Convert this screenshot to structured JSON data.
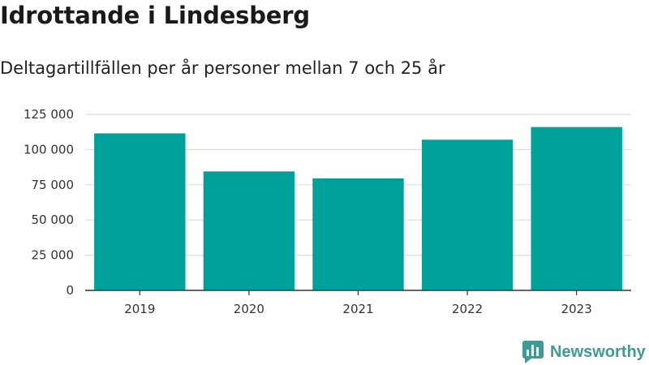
{
  "chart_data": {
    "type": "bar",
    "title": "Idrottande i Lindesberg",
    "subtitle": "Deltagartillfällen per år personer mellan 7 och 25 år",
    "categories": [
      "2019",
      "2020",
      "2021",
      "2022",
      "2023"
    ],
    "values": [
      111500,
      84500,
      79500,
      107000,
      116000
    ],
    "ylim": [
      0,
      125000
    ],
    "yticks": [
      0,
      25000,
      50000,
      75000,
      100000,
      125000
    ],
    "ytick_labels": [
      "0",
      "25 000",
      "50 000",
      "75 000",
      "100 000",
      "125 000"
    ],
    "xlabel": "",
    "ylabel": "",
    "grid": true,
    "bar_color": "#00a19a",
    "grid_color": "#dddddd",
    "axis_color": "#333333"
  },
  "branding": {
    "name": "Newsworthy",
    "icon": "newsworthy-logo-icon",
    "color": "#3f9a94"
  }
}
